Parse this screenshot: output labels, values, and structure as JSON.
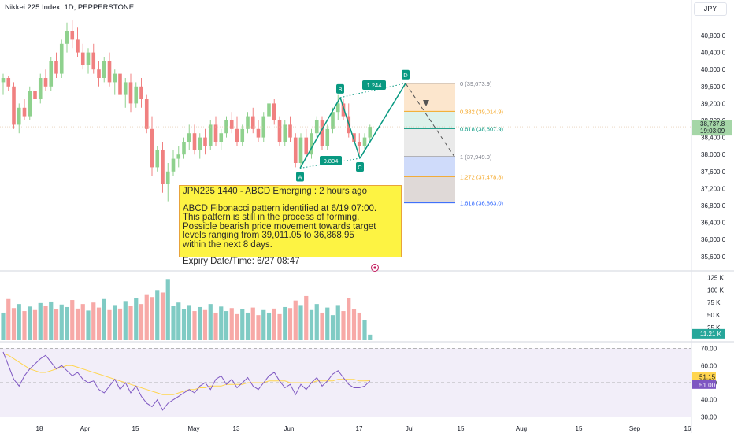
{
  "header": {
    "symbol_title": "Nikkei 225 Index, 1D, PEPPERSTONE",
    "currency": "JPY"
  },
  "chart_data": [
    {
      "type": "candlestick",
      "title": "Nikkei 225 Index, 1D, PEPPERSTONE",
      "yaxis_ticks": [
        "40,800.0",
        "40,400.0",
        "40,000.0",
        "39,600.0",
        "39,200.0",
        "38,800.0",
        "38,400.0",
        "38,000.0",
        "37,600.0",
        "37,200.0",
        "36,800.0",
        "36,400.0",
        "36,000.0",
        "35,600.0"
      ],
      "ylim": [
        35300,
        41300
      ],
      "xaxis_ticks": [
        "18",
        "Apr",
        "15",
        "May",
        "13",
        "Jun",
        "17",
        "Jul",
        "15",
        "Aug",
        "15",
        "Sep",
        "16"
      ],
      "price_label": "38,737.8",
      "countdown_label": "19:03:09",
      "colors": {
        "up": "#26a69a",
        "down": "#ef5350",
        "pattern": "#089981"
      },
      "pattern": {
        "name": "ABCD",
        "points": [
          {
            "label": "A",
            "value": 37680
          },
          {
            "label": "B",
            "value": 39340
          },
          {
            "label": "C",
            "value": 37910
          },
          {
            "label": "D",
            "value": 39674
          }
        ],
        "ratio_labels": [
          "1.244",
          "0.804"
        ]
      },
      "fib_levels": [
        {
          "label": "0 (39,673.9)",
          "value": 39673.9,
          "color": "#787b86"
        },
        {
          "label": "0.382 (39,014.9)",
          "value": 39014.9,
          "color": "#f5a623"
        },
        {
          "label": "0.618 (38,607.9)",
          "value": 38607.9,
          "color": "#089981"
        },
        {
          "label": "1 (37,949.0)",
          "value": 37949.0,
          "color": "#787b86"
        },
        {
          "label": "1.272 (37,478.8)",
          "value": 37478.8,
          "color": "#f5a623"
        },
        {
          "label": "1.618 (36,863.0)",
          "value": 36863.0,
          "color": "#2962ff"
        }
      ],
      "candles": [
        [
          39700,
          39900,
          39400,
          39800
        ],
        [
          39800,
          39850,
          39500,
          39600
        ],
        [
          39600,
          39700,
          38600,
          38700
        ],
        [
          38700,
          39200,
          38500,
          39100
        ],
        [
          39100,
          39300,
          38800,
          38900
        ],
        [
          38900,
          39600,
          38800,
          39500
        ],
        [
          39500,
          39700,
          39200,
          39300
        ],
        [
          39300,
          39900,
          39200,
          39800
        ],
        [
          39800,
          40000,
          39500,
          39600
        ],
        [
          39600,
          40300,
          39500,
          40200
        ],
        [
          40200,
          40400,
          39800,
          39900
        ],
        [
          39900,
          40700,
          39800,
          40600
        ],
        [
          40600,
          41100,
          40400,
          40900
        ],
        [
          40900,
          41150,
          40500,
          40700
        ],
        [
          40700,
          41000,
          40300,
          40400
        ],
        [
          40400,
          40600,
          40000,
          40100
        ],
        [
          40100,
          40500,
          39900,
          40400
        ],
        [
          40400,
          40600,
          39900,
          40000
        ],
        [
          40000,
          40200,
          39600,
          39800
        ],
        [
          39800,
          40300,
          39700,
          40200
        ],
        [
          40200,
          40400,
          39600,
          39700
        ],
        [
          39700,
          40000,
          39400,
          39900
        ],
        [
          39900,
          40100,
          39300,
          39400
        ],
        [
          39400,
          39800,
          39100,
          39700
        ],
        [
          39700,
          39900,
          39000,
          39200
        ],
        [
          39200,
          39700,
          39100,
          39600
        ],
        [
          39600,
          39800,
          39100,
          39300
        ],
        [
          39300,
          39400,
          38500,
          38600
        ],
        [
          38600,
          38900,
          37500,
          37700
        ],
        [
          37700,
          38200,
          37600,
          38100
        ],
        [
          38100,
          38300,
          37100,
          37300
        ],
        [
          37300,
          37800,
          36900,
          37600
        ],
        [
          37600,
          38100,
          37500,
          37900
        ],
        [
          37900,
          38200,
          37700,
          38000
        ],
        [
          38000,
          38400,
          37900,
          38300
        ],
        [
          38300,
          38700,
          38100,
          38500
        ],
        [
          38500,
          38700,
          38000,
          38100
        ],
        [
          38100,
          38500,
          37900,
          38400
        ],
        [
          38400,
          38600,
          38000,
          38200
        ],
        [
          38200,
          38800,
          38100,
          38700
        ],
        [
          38700,
          38900,
          38200,
          38300
        ],
        [
          38300,
          38600,
          38100,
          38500
        ],
        [
          38500,
          38900,
          38400,
          38800
        ],
        [
          38800,
          39000,
          38500,
          38600
        ],
        [
          38600,
          38900,
          38200,
          38300
        ],
        [
          38300,
          38700,
          38200,
          38600
        ],
        [
          38600,
          39000,
          38500,
          38900
        ],
        [
          38900,
          39100,
          38500,
          38600
        ],
        [
          38600,
          38800,
          38300,
          38400
        ],
        [
          38400,
          39000,
          38300,
          38900
        ],
        [
          38900,
          39300,
          38800,
          39200
        ],
        [
          39200,
          39300,
          38700,
          38800
        ],
        [
          38800,
          38900,
          38200,
          38300
        ],
        [
          38300,
          38800,
          38200,
          38700
        ],
        [
          38700,
          38900,
          38300,
          38400
        ],
        [
          38400,
          38500,
          37700,
          37800
        ],
        [
          37800,
          38500,
          37700,
          38400
        ],
        [
          38400,
          38600,
          37900,
          38000
        ],
        [
          38000,
          38600,
          37900,
          38500
        ],
        [
          38500,
          38900,
          38400,
          38800
        ],
        [
          38800,
          38900,
          38100,
          38200
        ],
        [
          38200,
          38700,
          38100,
          38600
        ],
        [
          38600,
          39100,
          38500,
          39000
        ],
        [
          39000,
          39400,
          38800,
          39200
        ],
        [
          39200,
          39300,
          38800,
          38900
        ],
        [
          38900,
          39200,
          38400,
          38500
        ],
        [
          38500,
          38700,
          38200,
          38300
        ],
        [
          38300,
          38500,
          38000,
          38200
        ],
        [
          38200,
          38500,
          38100,
          38400
        ],
        [
          38400,
          38700,
          38300,
          38650
        ]
      ]
    },
    {
      "type": "bar",
      "title": "Volume",
      "yaxis_ticks": [
        "125 K",
        "100 K",
        "75 K",
        "50 K",
        "25 K"
      ],
      "ylim": [
        0,
        135000
      ],
      "last_label": "11.21 K",
      "values": [
        55000,
        82000,
        64000,
        72000,
        58000,
        67000,
        60000,
        74000,
        68000,
        77000,
        62000,
        71000,
        66000,
        80000,
        63000,
        72000,
        59000,
        75000,
        65000,
        82000,
        60000,
        70000,
        63000,
        78000,
        69000,
        84000,
        72000,
        90000,
        86000,
        100000,
        95000,
        122000,
        68000,
        75000,
        62000,
        70000,
        58000,
        66000,
        60000,
        72000,
        55000,
        67000,
        58000,
        64000,
        52000,
        62000,
        55000,
        65000,
        50000,
        60000,
        55000,
        63000,
        52000,
        66000,
        64000,
        79000,
        70000,
        88000,
        60000,
        72000,
        55000,
        65000,
        50000,
        70000,
        58000,
        84000,
        62000,
        55000,
        40000,
        11210
      ],
      "colors": {
        "up": "#80cbc4",
        "down": "#f7a9a7"
      }
    },
    {
      "type": "line",
      "title": "RSI",
      "yaxis_ticks": [
        "70.00",
        "60.00",
        "50.00",
        "40.00",
        "30.00"
      ],
      "ylim": [
        27,
        73
      ],
      "series": [
        {
          "label": "51.15",
          "color": "#ffd54f",
          "values": [
            67,
            66,
            64,
            62,
            60,
            58,
            57,
            56,
            56,
            57,
            58,
            59,
            60,
            60,
            59,
            58,
            57,
            56,
            55,
            54,
            53,
            52,
            51,
            50,
            49,
            48,
            47,
            46,
            45,
            44,
            43,
            43,
            43,
            44,
            45,
            46,
            46,
            47,
            47,
            48,
            48,
            48,
            49,
            49,
            49,
            49,
            50,
            50,
            50,
            50,
            51,
            51,
            51,
            51,
            50,
            50,
            50,
            50,
            50,
            51,
            51,
            51,
            51,
            52,
            52,
            52,
            52,
            51,
            51,
            51.15
          ]
        },
        {
          "label": "51.00",
          "color": "#7e57c2",
          "values": [
            68,
            60,
            52,
            48,
            54,
            58,
            61,
            64,
            66,
            62,
            58,
            60,
            57,
            54,
            56,
            52,
            50,
            51,
            46,
            44,
            48,
            52,
            46,
            50,
            44,
            48,
            42,
            38,
            36,
            40,
            34,
            38,
            40,
            42,
            44,
            46,
            44,
            48,
            50,
            46,
            52,
            54,
            49,
            52,
            47,
            50,
            53,
            48,
            46,
            50,
            54,
            56,
            51,
            47,
            49,
            43,
            49,
            46,
            50,
            53,
            48,
            51,
            55,
            57,
            53,
            49,
            47,
            47,
            48,
            51
          ]
        }
      ]
    }
  ],
  "info_box": {
    "title": "JPN225 1440 - ABCD Emerging : 2 hours ago",
    "lines": [
      "ABCD Fibonacci pattern identified at 6/19 07:00.",
      "This pattern is still in the process of forming.",
      "Possible bearish price movement towards target",
      "levels ranging from 39,011.05 to 36,868.95",
      "within the next 8 days."
    ],
    "expiry": "Expiry Date/Time: 6/27 08:47"
  }
}
